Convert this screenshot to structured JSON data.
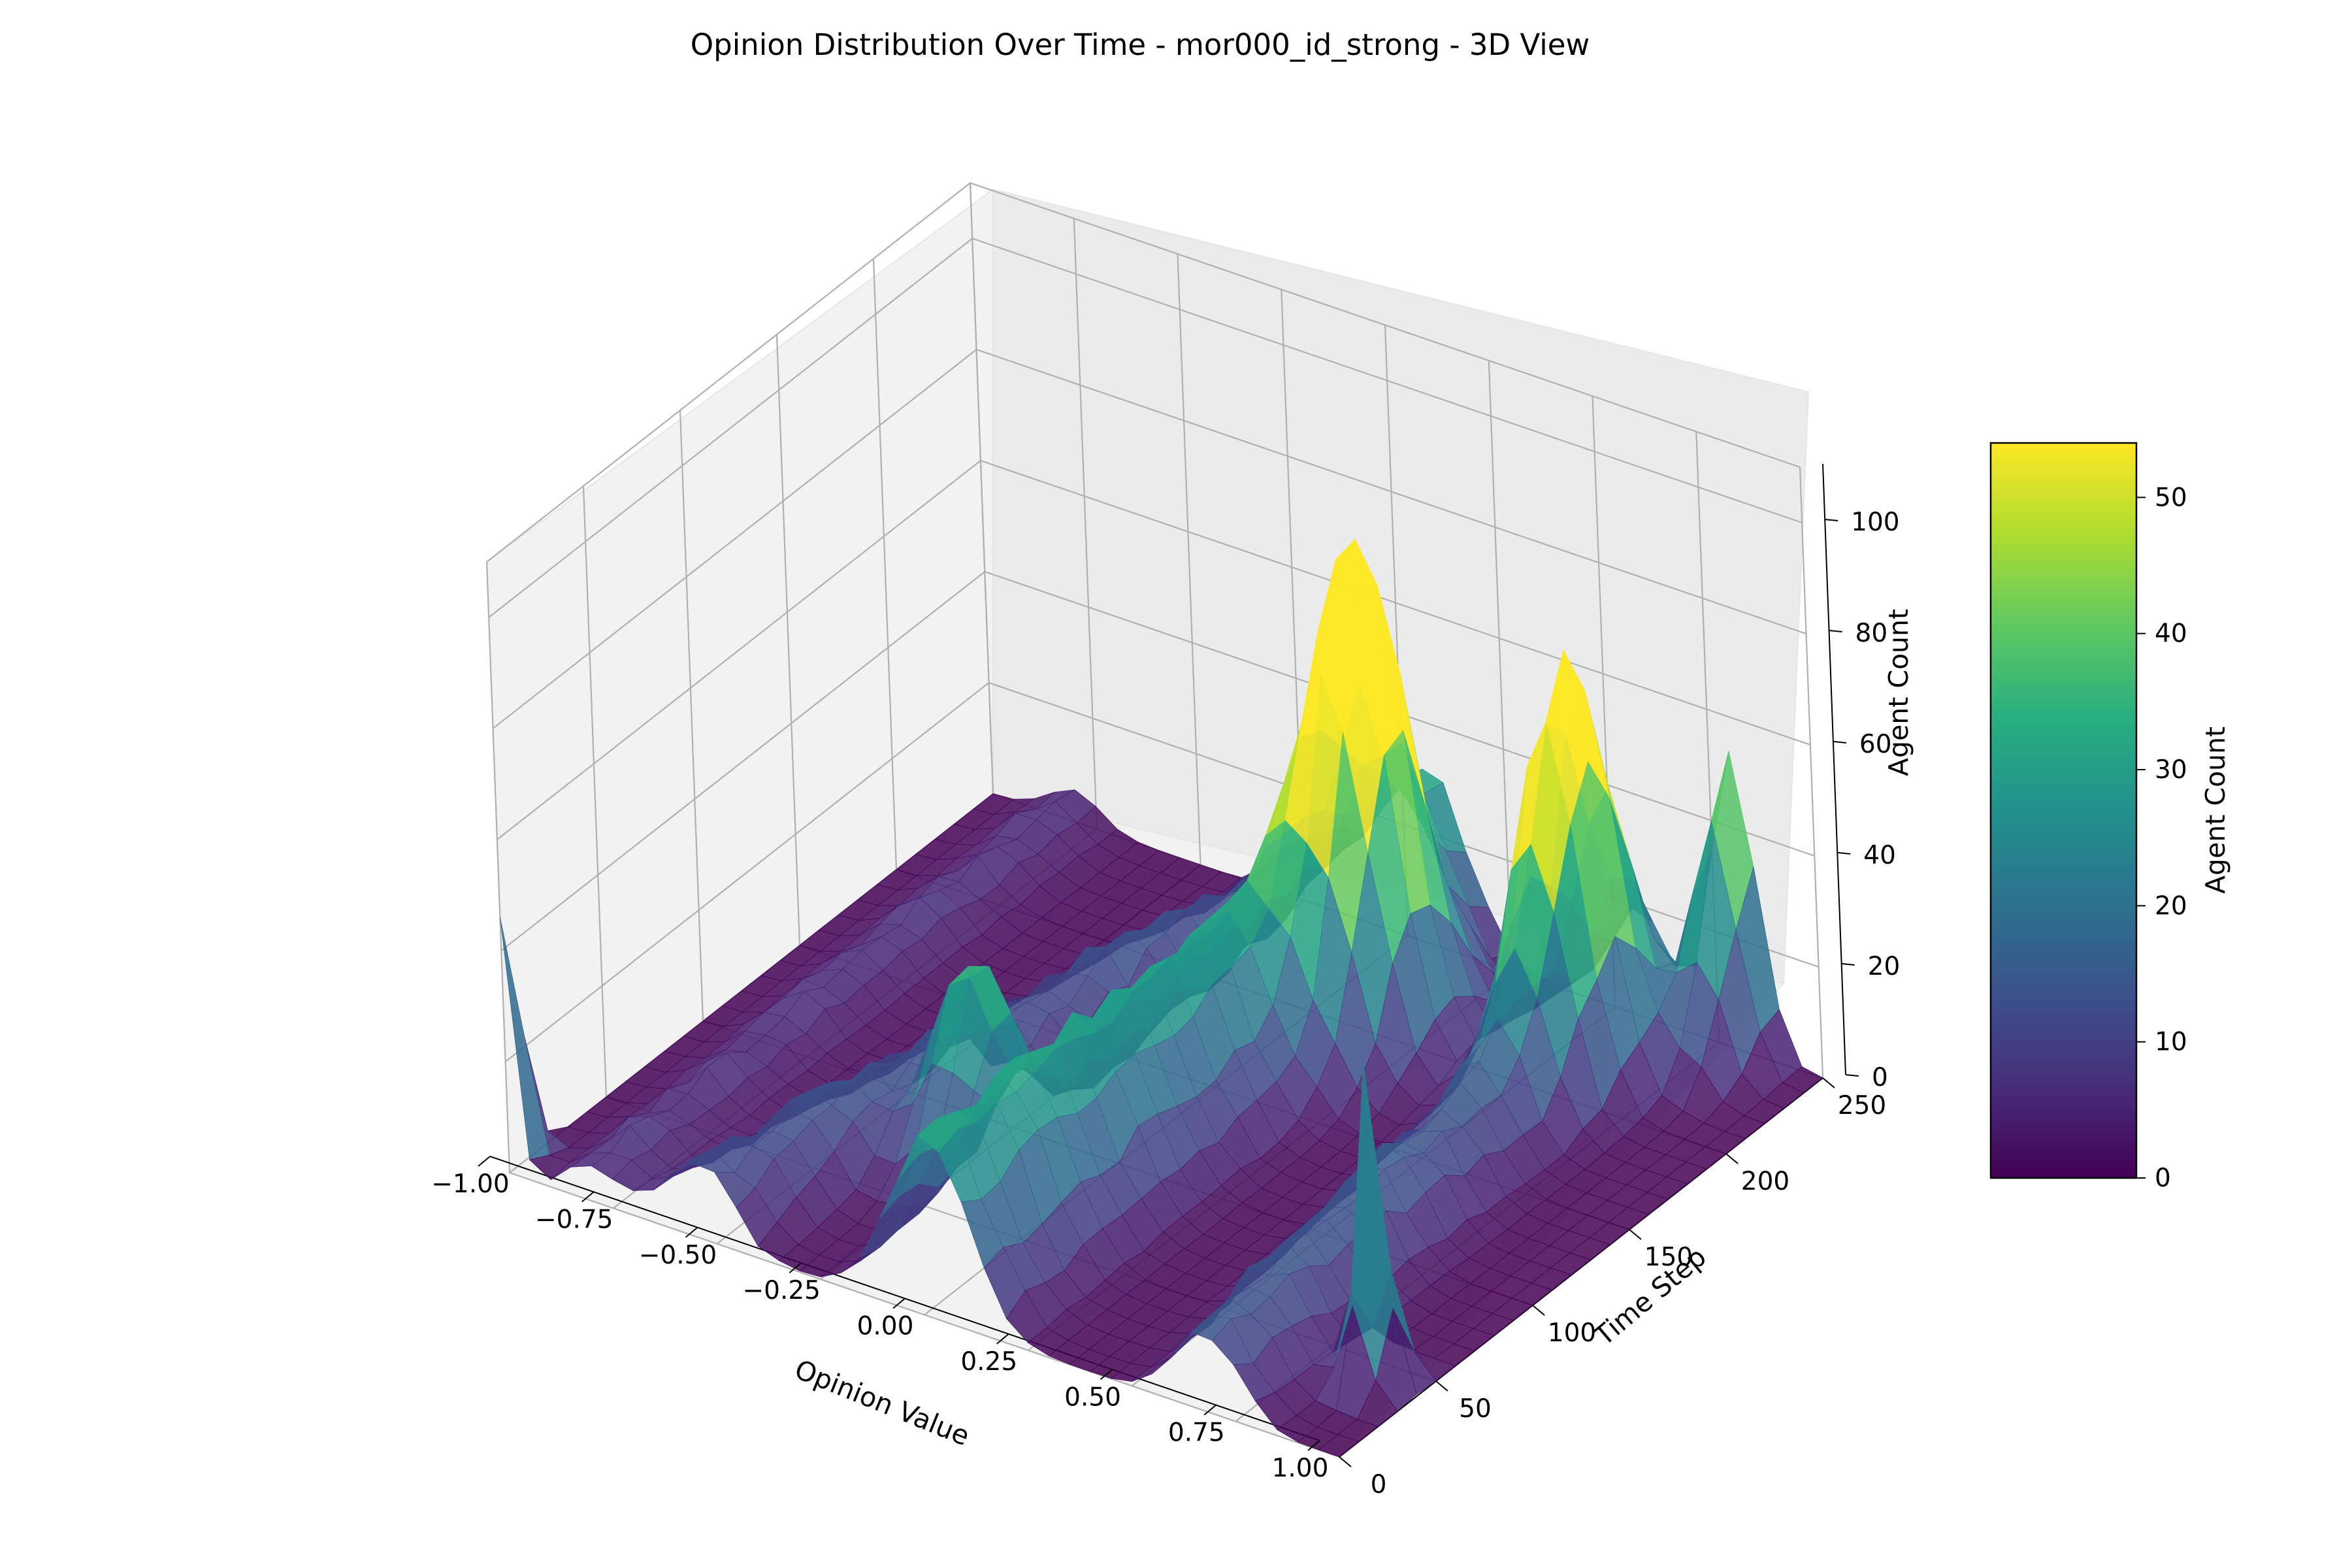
{
  "chart_data": {
    "type": "surface3d",
    "title": "Opinion Distribution Over Time - mor000_id_strong - 3D View",
    "xlabel": "Opinion Value",
    "ylabel": "Time Step",
    "zlabel": "Agent Count",
    "xlim": [
      -1.0,
      1.0
    ],
    "ylim": [
      0,
      250
    ],
    "zlim": [
      0,
      110
    ],
    "x_ticks": [
      "−1.00",
      "−0.75",
      "−0.50",
      "−0.25",
      "0.00",
      "0.25",
      "0.50",
      "0.75",
      "1.00"
    ],
    "y_ticks": [
      "0",
      "50",
      "100",
      "150",
      "200",
      "250"
    ],
    "z_ticks": [
      "0",
      "20",
      "40",
      "60",
      "80",
      "100"
    ],
    "grid": true,
    "colormap": "viridis",
    "colorbar": {
      "label": "Agent Count",
      "ticks": [
        "0",
        "10",
        "20",
        "30",
        "40",
        "50"
      ],
      "range": [
        0,
        54
      ]
    },
    "surface": {
      "x_range": [
        -1.0,
        1.0
      ],
      "x_count": 41,
      "t_range": [
        0,
        250
      ],
      "t_count": 26,
      "features": [
        {
          "kind": "ridge",
          "x0": 0.02,
          "x1": 0.05,
          "t0": 0,
          "t1": 250,
          "height": 30,
          "width": 0.09
        },
        {
          "kind": "ridge",
          "x0": -0.55,
          "x1": -0.18,
          "t0": 0,
          "t1": 250,
          "height": 11,
          "width": 0.08
        },
        {
          "kind": "ridge",
          "x0": 0.68,
          "x1": 0.55,
          "t0": 0,
          "t1": 250,
          "height": 13,
          "width": 0.07
        },
        {
          "kind": "ridge",
          "x0": -0.8,
          "x1": -0.8,
          "t0": 0,
          "t1": 250,
          "height": 5,
          "width": 0.06
        },
        {
          "kind": "spike",
          "x": -1.0,
          "t": 0,
          "height": 46,
          "sx": 0.02,
          "st": 8
        },
        {
          "kind": "spike",
          "x": 0.18,
          "t": 195,
          "height": 78,
          "sx": 0.08,
          "st": 18
        },
        {
          "kind": "spike",
          "x": 0.6,
          "t": 210,
          "height": 64,
          "sx": 0.07,
          "st": 18
        },
        {
          "kind": "spike",
          "x": 0.8,
          "t": 250,
          "height": 50,
          "sx": 0.05,
          "st": 15
        },
        {
          "kind": "spike",
          "x": -0.22,
          "t": 75,
          "height": 36,
          "sx": 0.07,
          "st": 14
        },
        {
          "kind": "spike",
          "x": 0.9,
          "t": 40,
          "height": 55,
          "sx": 0.03,
          "st": 6
        }
      ]
    }
  }
}
